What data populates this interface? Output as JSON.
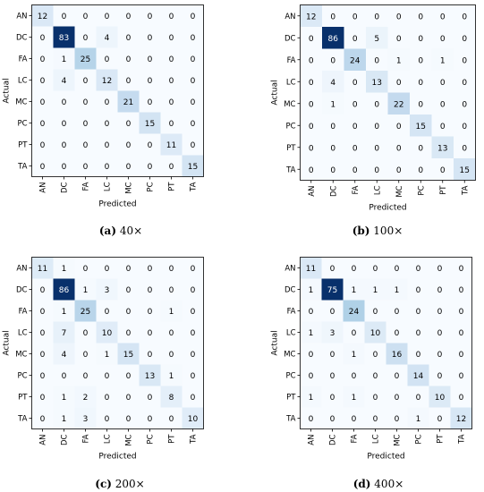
{
  "chart_data": [
    {
      "type": "heatmap",
      "caption_letter": "(a)",
      "caption_text": "40×",
      "xlabel": "Predicted",
      "ylabel": "Actual",
      "labels": [
        "AN",
        "DC",
        "FA",
        "LC",
        "MC",
        "PC",
        "PT",
        "TA"
      ],
      "matrix": [
        [
          12,
          0,
          0,
          0,
          0,
          0,
          0,
          0
        ],
        [
          0,
          83,
          0,
          4,
          0,
          0,
          0,
          0
        ],
        [
          0,
          1,
          25,
          0,
          0,
          0,
          0,
          0
        ],
        [
          0,
          4,
          0,
          12,
          0,
          0,
          0,
          0
        ],
        [
          0,
          0,
          0,
          0,
          21,
          0,
          0,
          0
        ],
        [
          0,
          0,
          0,
          0,
          0,
          15,
          0,
          0
        ],
        [
          0,
          0,
          0,
          0,
          0,
          0,
          11,
          0
        ],
        [
          0,
          0,
          0,
          0,
          0,
          0,
          0,
          15
        ]
      ],
      "colormap": "Blues"
    },
    {
      "type": "heatmap",
      "caption_letter": "(b)",
      "caption_text": "100×",
      "xlabel": "Predicted",
      "ylabel": "Actual",
      "labels": [
        "AN",
        "DC",
        "FA",
        "LC",
        "MC",
        "PC",
        "PT",
        "TA"
      ],
      "matrix": [
        [
          12,
          0,
          0,
          0,
          0,
          0,
          0,
          0
        ],
        [
          0,
          86,
          0,
          5,
          0,
          0,
          0,
          0
        ],
        [
          0,
          0,
          24,
          0,
          1,
          0,
          1,
          0
        ],
        [
          0,
          4,
          0,
          13,
          0,
          0,
          0,
          0
        ],
        [
          0,
          1,
          0,
          0,
          22,
          0,
          0,
          0
        ],
        [
          0,
          0,
          0,
          0,
          0,
          15,
          0,
          0
        ],
        [
          0,
          0,
          0,
          0,
          0,
          0,
          13,
          0
        ],
        [
          0,
          0,
          0,
          0,
          0,
          0,
          0,
          15
        ]
      ],
      "colormap": "Blues"
    },
    {
      "type": "heatmap",
      "caption_letter": "(c)",
      "caption_text": "200×",
      "xlabel": "Predicted",
      "ylabel": "Actual",
      "labels": [
        "AN",
        "DC",
        "FA",
        "LC",
        "MC",
        "PC",
        "PT",
        "TA"
      ],
      "matrix": [
        [
          11,
          1,
          0,
          0,
          0,
          0,
          0,
          0
        ],
        [
          0,
          86,
          1,
          3,
          0,
          0,
          0,
          0
        ],
        [
          0,
          1,
          25,
          0,
          0,
          0,
          1,
          0
        ],
        [
          0,
          7,
          0,
          10,
          0,
          0,
          0,
          0
        ],
        [
          0,
          4,
          0,
          1,
          15,
          0,
          0,
          0
        ],
        [
          0,
          0,
          0,
          0,
          0,
          13,
          1,
          0
        ],
        [
          0,
          1,
          2,
          0,
          0,
          0,
          8,
          0
        ],
        [
          0,
          1,
          3,
          0,
          0,
          0,
          0,
          10
        ]
      ],
      "colormap": "Blues"
    },
    {
      "type": "heatmap",
      "caption_letter": "(d)",
      "caption_text": "400×",
      "xlabel": "Predicted",
      "ylabel": "Actual",
      "labels": [
        "AN",
        "DC",
        "FA",
        "LC",
        "MC",
        "PC",
        "PT",
        "TA"
      ],
      "matrix": [
        [
          11,
          0,
          0,
          0,
          0,
          0,
          0,
          0
        ],
        [
          1,
          75,
          1,
          1,
          1,
          0,
          0,
          0
        ],
        [
          0,
          0,
          24,
          0,
          0,
          0,
          0,
          0
        ],
        [
          1,
          3,
          0,
          10,
          0,
          0,
          0,
          0
        ],
        [
          0,
          0,
          1,
          0,
          16,
          0,
          0,
          0
        ],
        [
          0,
          0,
          0,
          0,
          0,
          14,
          0,
          0
        ],
        [
          1,
          0,
          1,
          0,
          0,
          0,
          10,
          0
        ],
        [
          0,
          0,
          0,
          0,
          0,
          1,
          0,
          12
        ]
      ],
      "colormap": "Blues"
    }
  ]
}
